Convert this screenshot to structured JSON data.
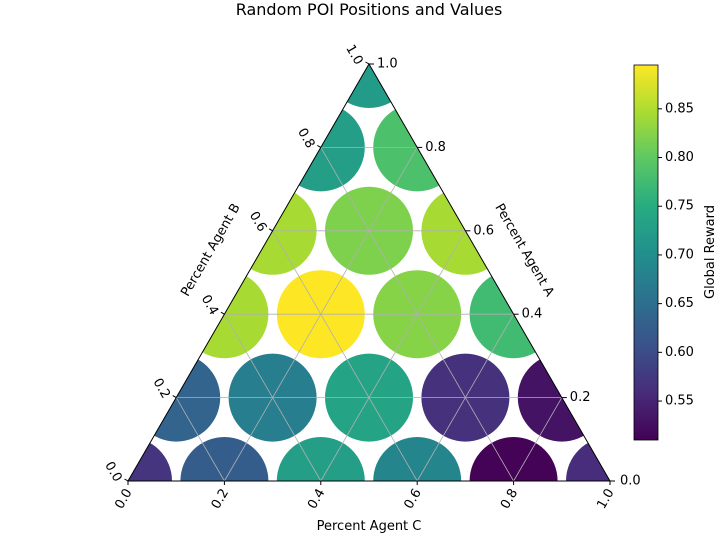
{
  "chart_data": {
    "type": "scatter",
    "title": "Random POI Positions and Values",
    "plot_kind": "ternary",
    "axes": {
      "a": {
        "label": "Percent Agent A",
        "ticks": [
          "0.2",
          "0.4",
          "0.6",
          "0.8",
          "1.0"
        ],
        "origin_label": "0.0",
        "range": [
          0,
          1
        ]
      },
      "b": {
        "label": "Percent Agent B",
        "ticks": [
          "0.0",
          "0.2",
          "0.4",
          "0.6",
          "0.8",
          "1.0"
        ],
        "range": [
          0,
          1
        ]
      },
      "c": {
        "label": "Percent Agent C",
        "ticks": [
          "0.0",
          "0.2",
          "0.4",
          "0.6",
          "0.8",
          "1.0"
        ],
        "range": [
          0,
          1
        ]
      }
    },
    "colorbar": {
      "label": "Global Reward",
      "colormap": "viridis",
      "range": [
        0.51,
        0.895
      ],
      "ticks": [
        "0.55",
        "0.60",
        "0.65",
        "0.70",
        "0.75",
        "0.80",
        "0.85"
      ],
      "tick_values": [
        0.55,
        0.6,
        0.65,
        0.7,
        0.75,
        0.8,
        0.85
      ]
    },
    "grid": true,
    "points": [
      {
        "a": 0.0,
        "c": 0.0,
        "value": 0.57
      },
      {
        "a": 0.0,
        "c": 0.2,
        "value": 0.625
      },
      {
        "a": 0.0,
        "c": 0.4,
        "value": 0.725
      },
      {
        "a": 0.0,
        "c": 0.6,
        "value": 0.685
      },
      {
        "a": 0.0,
        "c": 0.8,
        "value": 0.512
      },
      {
        "a": 0.0,
        "c": 1.0,
        "value": 0.56
      },
      {
        "a": 0.2,
        "c": 0.0,
        "value": 0.635
      },
      {
        "a": 0.2,
        "c": 0.2,
        "value": 0.675
      },
      {
        "a": 0.2,
        "c": 0.4,
        "value": 0.735
      },
      {
        "a": 0.2,
        "c": 0.6,
        "value": 0.565
      },
      {
        "a": 0.2,
        "c": 0.8,
        "value": 0.53
      },
      {
        "a": 0.4,
        "c": 0.0,
        "value": 0.845
      },
      {
        "a": 0.4,
        "c": 0.2,
        "value": 0.895
      },
      {
        "a": 0.4,
        "c": 0.4,
        "value": 0.825
      },
      {
        "a": 0.4,
        "c": 0.6,
        "value": 0.775
      },
      {
        "a": 0.6,
        "c": 0.0,
        "value": 0.845
      },
      {
        "a": 0.6,
        "c": 0.2,
        "value": 0.82
      },
      {
        "a": 0.6,
        "c": 0.4,
        "value": 0.845
      },
      {
        "a": 0.8,
        "c": 0.0,
        "value": 0.725
      },
      {
        "a": 0.8,
        "c": 0.2,
        "value": 0.785
      },
      {
        "a": 1.0,
        "c": 0.0,
        "value": 0.72
      }
    ]
  }
}
